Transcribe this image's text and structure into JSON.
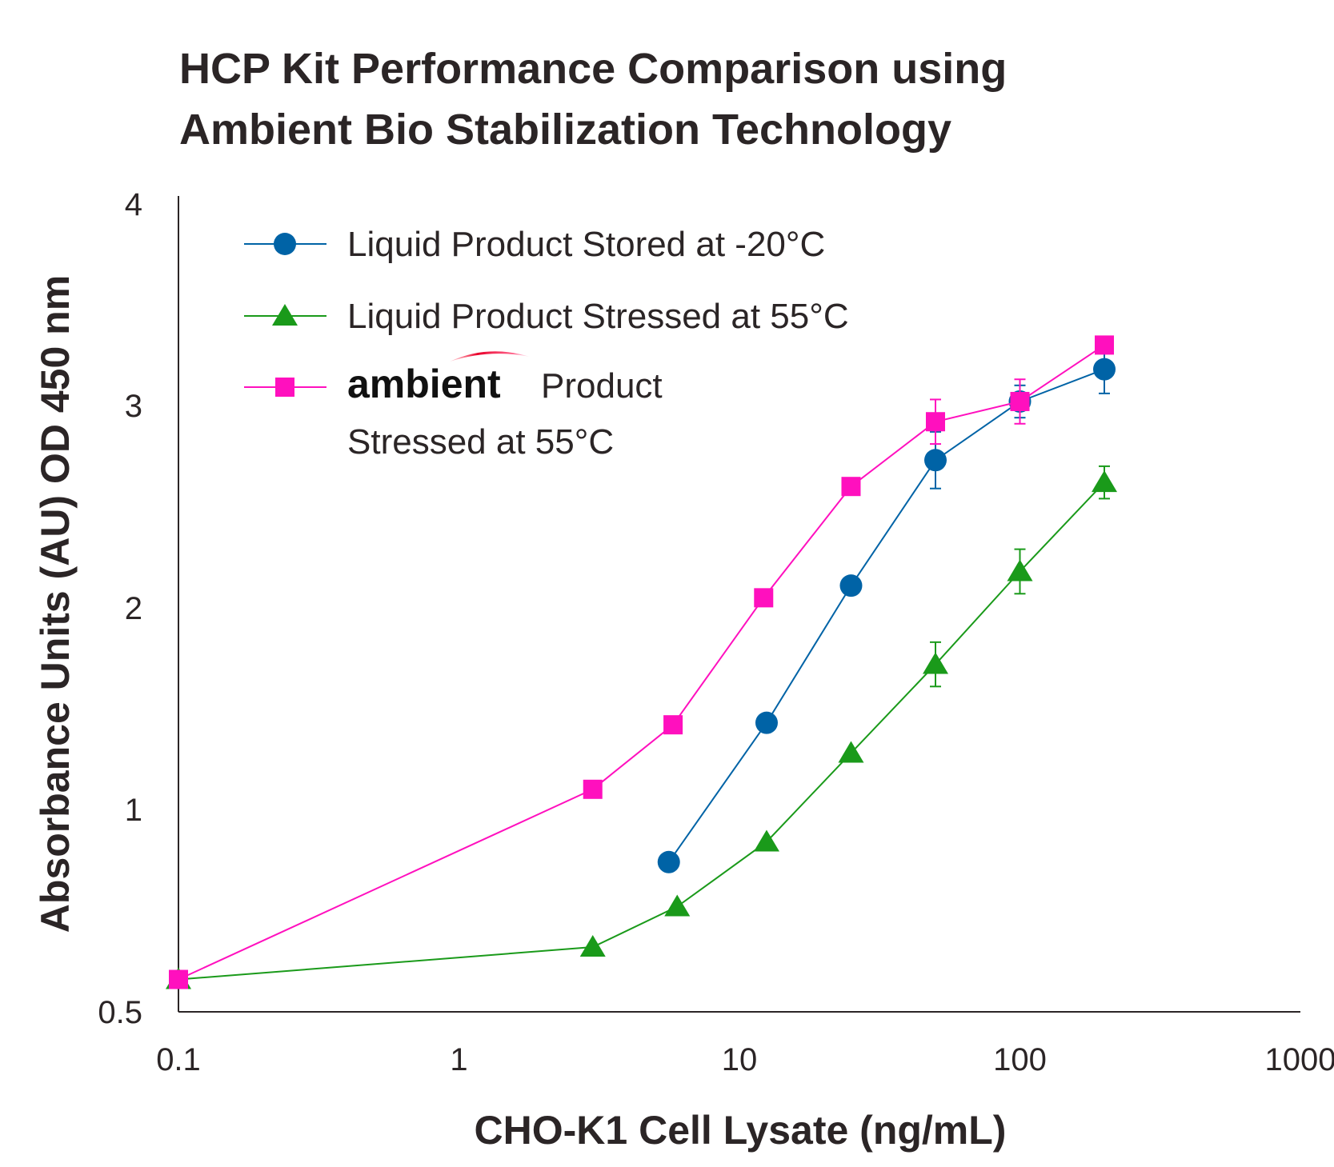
{
  "chart_data": {
    "type": "line",
    "title": [
      "HCP Kit Performance Comparison using",
      "Ambient Bio Stabilization Technology"
    ],
    "xlabel": "CHO-K1 Cell Lysate (ng/mL)",
    "ylabel": "Absorbance Units (AU) OD 450 nm",
    "x_scale": "log",
    "xlim": [
      0.1,
      1000
    ],
    "ylim": [
      0.5,
      4
    ],
    "x_ticks": [
      0.1,
      1,
      10,
      100,
      1000
    ],
    "x_tick_labels": [
      "0.1",
      "1",
      "10",
      "100",
      "1000"
    ],
    "y_ticks": [
      0.5,
      1,
      2,
      3,
      4
    ],
    "y_tick_labels": [
      "0.5",
      "1",
      "2",
      "3",
      "4"
    ],
    "grid": false,
    "legend_position": "top-left",
    "series": [
      {
        "name": "Liquid Product Stored at -20°C",
        "color": "#0063a6",
        "marker": "circle",
        "x": [
          5.6,
          12.5,
          25,
          50,
          100,
          200
        ],
        "y": [
          0.87,
          1.43,
          2.11,
          2.73,
          3.02,
          3.18
        ],
        "err": [
          0,
          0,
          0,
          0.14,
          0.08,
          0.12
        ]
      },
      {
        "name": "Liquid Product Stressed at 55°C",
        "color": "#1a9a1a",
        "marker": "triangle",
        "x": [
          0.1,
          3.0,
          6.0,
          12.5,
          25,
          50,
          100,
          200
        ],
        "y": [
          0.58,
          0.66,
          0.76,
          0.92,
          1.28,
          1.72,
          2.18,
          2.62
        ],
        "err": [
          0,
          0,
          0,
          0,
          0,
          0.11,
          0.11,
          0.08
        ]
      },
      {
        "name": "ambient Product Stressed at 55°C",
        "color": "#ff10be",
        "marker": "square",
        "x": [
          0.1,
          3.0,
          5.8,
          12.2,
          25,
          50,
          100,
          200
        ],
        "y": [
          0.58,
          1.1,
          1.42,
          2.05,
          2.6,
          2.92,
          3.02,
          3.3
        ],
        "err": [
          0,
          0,
          0,
          0,
          0,
          0.11,
          0.11,
          0
        ]
      }
    ]
  },
  "legend": {
    "item1": "Liquid Product Stored at -20°C",
    "item2": "Liquid Product Stressed at 55°C",
    "item3_brand": "ambient",
    "item3_line1": "Product",
    "item3_line2": "Stressed at 55°C"
  }
}
